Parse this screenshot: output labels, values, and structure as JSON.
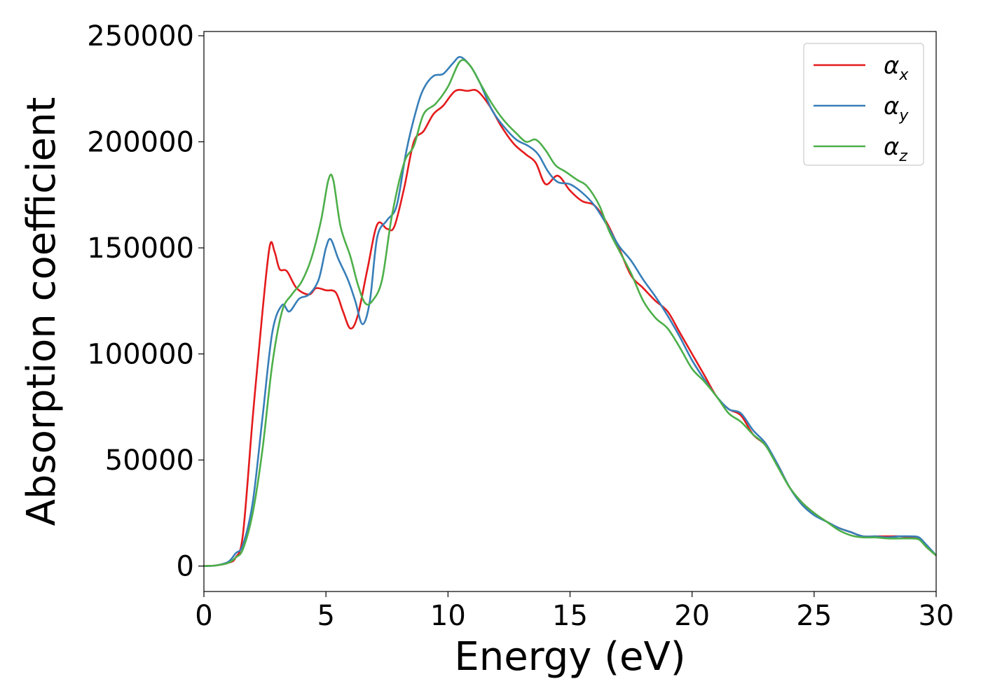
{
  "chart_data": {
    "type": "line",
    "title": "",
    "xlabel": "Energy (eV)",
    "ylabel": "Absorption coefficient",
    "xlim": [
      0,
      30
    ],
    "ylim": [
      -12000,
      252000
    ],
    "xticks": [
      "0",
      "5",
      "10",
      "15",
      "20",
      "25",
      "30"
    ],
    "yticks": [
      "0",
      "50000",
      "100000",
      "150000",
      "200000",
      "250000"
    ],
    "grid": false,
    "legend_position": "top-right",
    "series": [
      {
        "name": "α_x",
        "legend_base": "α",
        "legend_sub": "x",
        "color": "#e41a1c",
        "points": [
          [
            0,
            0
          ],
          [
            0.5,
            300
          ],
          [
            1,
            1500
          ],
          [
            1.3,
            4000
          ],
          [
            1.6,
            15000
          ],
          [
            2,
            70000
          ],
          [
            2.4,
            120000
          ],
          [
            2.7,
            151000
          ],
          [
            2.9,
            148000
          ],
          [
            3.1,
            140000
          ],
          [
            3.4,
            139000
          ],
          [
            3.8,
            131000
          ],
          [
            4.3,
            128000
          ],
          [
            4.6,
            131000
          ],
          [
            5,
            130000
          ],
          [
            5.4,
            129000
          ],
          [
            5.7,
            120000
          ],
          [
            6,
            112000
          ],
          [
            6.3,
            118000
          ],
          [
            6.7,
            140000
          ],
          [
            7.1,
            161000
          ],
          [
            7.5,
            159000
          ],
          [
            7.8,
            160000
          ],
          [
            8.2,
            178000
          ],
          [
            8.6,
            200000
          ],
          [
            9,
            205000
          ],
          [
            9.4,
            213000
          ],
          [
            9.8,
            217000
          ],
          [
            10.3,
            224000
          ],
          [
            10.8,
            224000
          ],
          [
            11.2,
            224000
          ],
          [
            11.7,
            217000
          ],
          [
            12.2,
            207000
          ],
          [
            12.7,
            199000
          ],
          [
            13.2,
            194000
          ],
          [
            13.6,
            190000
          ],
          [
            14,
            180000
          ],
          [
            14.5,
            184000
          ],
          [
            15,
            177000
          ],
          [
            15.5,
            172000
          ],
          [
            16,
            170000
          ],
          [
            16.5,
            162000
          ],
          [
            17,
            150000
          ],
          [
            17.5,
            137000
          ],
          [
            18,
            131000
          ],
          [
            18.5,
            125000
          ],
          [
            19,
            120000
          ],
          [
            19.5,
            110000
          ],
          [
            20,
            100000
          ],
          [
            20.5,
            90000
          ],
          [
            21,
            80000
          ],
          [
            21.5,
            74000
          ],
          [
            22,
            71000
          ],
          [
            22.5,
            62000
          ],
          [
            23,
            57000
          ],
          [
            23.5,
            48000
          ],
          [
            24,
            37000
          ],
          [
            24.5,
            30000
          ],
          [
            25,
            25000
          ],
          [
            25.5,
            21000
          ],
          [
            26,
            18000
          ],
          [
            26.5,
            16000
          ],
          [
            27,
            14000
          ],
          [
            27.5,
            14000
          ],
          [
            28,
            14000
          ],
          [
            28.5,
            14000
          ],
          [
            29,
            13500
          ],
          [
            29.3,
            13000
          ],
          [
            29.6,
            9000
          ],
          [
            30,
            5000
          ]
        ]
      },
      {
        "name": "α_y",
        "legend_base": "α",
        "legend_sub": "y",
        "color": "#377eb8",
        "points": [
          [
            0,
            0
          ],
          [
            0.5,
            300
          ],
          [
            1,
            2000
          ],
          [
            1.3,
            6000
          ],
          [
            1.6,
            10000
          ],
          [
            2,
            30000
          ],
          [
            2.4,
            70000
          ],
          [
            2.8,
            110000
          ],
          [
            3.2,
            123000
          ],
          [
            3.5,
            120000
          ],
          [
            3.9,
            126000
          ],
          [
            4.3,
            128000
          ],
          [
            4.7,
            135000
          ],
          [
            5,
            150000
          ],
          [
            5.2,
            154000
          ],
          [
            5.5,
            145000
          ],
          [
            5.9,
            135000
          ],
          [
            6.2,
            125000
          ],
          [
            6.5,
            114000
          ],
          [
            6.8,
            125000
          ],
          [
            7.1,
            155000
          ],
          [
            7.5,
            163000
          ],
          [
            7.9,
            170000
          ],
          [
            8.3,
            196000
          ],
          [
            8.7,
            215000
          ],
          [
            9,
            225000
          ],
          [
            9.4,
            231000
          ],
          [
            9.8,
            232000
          ],
          [
            10.2,
            237000
          ],
          [
            10.5,
            240000
          ],
          [
            10.9,
            236000
          ],
          [
            11.3,
            228000
          ],
          [
            11.8,
            215000
          ],
          [
            12.3,
            207000
          ],
          [
            12.8,
            201000
          ],
          [
            13.3,
            198000
          ],
          [
            13.7,
            194000
          ],
          [
            14.1,
            186000
          ],
          [
            14.5,
            181000
          ],
          [
            15,
            180000
          ],
          [
            15.5,
            176000
          ],
          [
            16,
            170000
          ],
          [
            16.5,
            161000
          ],
          [
            17,
            151000
          ],
          [
            17.5,
            144000
          ],
          [
            18,
            135000
          ],
          [
            18.5,
            127000
          ],
          [
            19,
            118000
          ],
          [
            19.5,
            108000
          ],
          [
            20,
            97000
          ],
          [
            20.5,
            88000
          ],
          [
            21,
            80000
          ],
          [
            21.5,
            74000
          ],
          [
            22,
            72000
          ],
          [
            22.5,
            64000
          ],
          [
            23,
            58000
          ],
          [
            23.5,
            48000
          ],
          [
            24,
            37000
          ],
          [
            24.5,
            29000
          ],
          [
            25,
            24000
          ],
          [
            25.5,
            21000
          ],
          [
            26,
            18000
          ],
          [
            26.5,
            16000
          ],
          [
            27,
            14000
          ],
          [
            27.5,
            14000
          ],
          [
            28,
            13500
          ],
          [
            28.5,
            14000
          ],
          [
            29,
            14000
          ],
          [
            29.3,
            13500
          ],
          [
            29.6,
            10000
          ],
          [
            30,
            5000
          ]
        ]
      },
      {
        "name": "α_z",
        "legend_base": "α",
        "legend_sub": "z",
        "color": "#4daf4a",
        "points": [
          [
            0,
            0
          ],
          [
            0.5,
            300
          ],
          [
            1,
            1500
          ],
          [
            1.3,
            4000
          ],
          [
            1.6,
            8000
          ],
          [
            2,
            25000
          ],
          [
            2.4,
            55000
          ],
          [
            2.8,
            95000
          ],
          [
            3.2,
            120000
          ],
          [
            3.6,
            128000
          ],
          [
            4,
            134000
          ],
          [
            4.4,
            145000
          ],
          [
            4.8,
            163000
          ],
          [
            5.1,
            182000
          ],
          [
            5.3,
            182000
          ],
          [
            5.6,
            160000
          ],
          [
            6,
            146000
          ],
          [
            6.3,
            133000
          ],
          [
            6.6,
            124000
          ],
          [
            6.9,
            125000
          ],
          [
            7.3,
            135000
          ],
          [
            7.7,
            165000
          ],
          [
            8.2,
            190000
          ],
          [
            8.6,
            198000
          ],
          [
            9,
            213000
          ],
          [
            9.5,
            218000
          ],
          [
            10,
            226000
          ],
          [
            10.5,
            238000
          ],
          [
            10.9,
            236000
          ],
          [
            11.3,
            228000
          ],
          [
            11.8,
            218000
          ],
          [
            12.3,
            210000
          ],
          [
            12.8,
            204000
          ],
          [
            13.2,
            200000
          ],
          [
            13.6,
            201000
          ],
          [
            14,
            196000
          ],
          [
            14.4,
            189000
          ],
          [
            14.8,
            186000
          ],
          [
            15.3,
            182000
          ],
          [
            15.7,
            179000
          ],
          [
            16.2,
            170000
          ],
          [
            16.6,
            158000
          ],
          [
            17,
            149000
          ],
          [
            17.5,
            138000
          ],
          [
            18,
            125000
          ],
          [
            18.5,
            117000
          ],
          [
            19,
            112000
          ],
          [
            19.5,
            103000
          ],
          [
            20,
            93000
          ],
          [
            20.5,
            87000
          ],
          [
            21,
            80000
          ],
          [
            21.5,
            72000
          ],
          [
            22,
            68000
          ],
          [
            22.5,
            62000
          ],
          [
            23,
            57000
          ],
          [
            23.5,
            47000
          ],
          [
            24,
            37000
          ],
          [
            24.5,
            30000
          ],
          [
            25,
            25000
          ],
          [
            25.5,
            21000
          ],
          [
            26,
            17000
          ],
          [
            26.5,
            14500
          ],
          [
            27,
            13500
          ],
          [
            27.5,
            13500
          ],
          [
            28,
            13000
          ],
          [
            28.5,
            13000
          ],
          [
            29,
            13000
          ],
          [
            29.3,
            12500
          ],
          [
            29.6,
            9000
          ],
          [
            30,
            5000
          ]
        ]
      }
    ]
  }
}
